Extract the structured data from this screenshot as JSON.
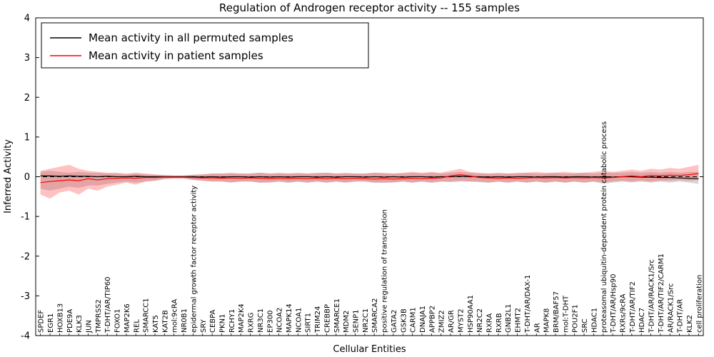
{
  "chart_data": {
    "type": "line",
    "title": "Regulation of Androgen receptor activity -- 155 samples",
    "xlabel": "Cellular Entities",
    "ylabel": "Inferred Activity",
    "ylim": [
      -4,
      4
    ],
    "yticks": [
      -4,
      -3,
      -2,
      -1,
      0,
      1,
      2,
      3,
      4
    ],
    "grid": false,
    "legend_position": "upper left",
    "legend": [
      {
        "label": "Mean activity in all permuted samples",
        "color": "#000000"
      },
      {
        "label": "Mean activity in patient samples",
        "color": "#ff0000"
      }
    ],
    "categories": [
      "SPDEF",
      "EGR1",
      "HOXB13",
      "PDE9A",
      "KLK3",
      "JUN",
      "TMPRSS2",
      "T-DHT/AR/TIP60",
      "FOXO1",
      "MAP2K6",
      "REL",
      "SMARCC1",
      "KAT5",
      "KAT2B",
      "mol:9cRA",
      "NR0B1",
      "epidermal growth factor receptor activity",
      "SRY",
      "CEBPA",
      "PKN1",
      "RCHY1",
      "MAP2K4",
      "RXRG",
      "NR3C1",
      "EP300",
      "NCOA2",
      "MAPK14",
      "NCOA1",
      "SIRT1",
      "TRIM24",
      "CREBBP",
      "SMARCE1",
      "MDM2",
      "SENP1",
      "NR2C1",
      "SMARCA2",
      "positive regulation of transcription",
      "GATA2",
      "GSK3B",
      "CARM1",
      "DNAJA1",
      "APPBP2",
      "ZMIZ2",
      "AR/GR",
      "MYST2",
      "HSP90AA1",
      "NR2C2",
      "RXRA",
      "RXRB",
      "GNB2L1",
      "EHMT2",
      "T-DHT/AR/DAX-1",
      "AR",
      "MAPK8",
      "BRM/BAF57",
      "mol:T-DHT",
      "POU2F1",
      "SRC",
      "HDAC1",
      "proteasomal ubiquitin-dependent protein catabolic process",
      "T-DHT/AR/Hsp90",
      "RXRs/9cRA",
      "T-DHT/AR/TIF2",
      "HDAC7",
      "T-DHT/AR/RACK1/Src",
      "T-DHT/AR/TIF2/CARM1",
      "AR/RACK1/Src",
      "T-DHT/AR",
      "KLK2",
      "cell proliferation"
    ],
    "series": [
      {
        "name": "Mean activity in all permuted samples",
        "color": "#000000",
        "values": [
          0.02,
          0.02,
          0.01,
          0.02,
          0.01,
          0.01,
          0.0,
          0.01,
          0.0,
          0.0,
          0.01,
          0.0,
          0.0,
          0.0,
          0.0,
          0.0,
          0.0,
          -0.01,
          0.0,
          -0.01,
          0.0,
          0.0,
          -0.01,
          0.0,
          -0.01,
          0.0,
          -0.01,
          0.0,
          0.0,
          -0.01,
          0.0,
          -0.01,
          0.0,
          0.0,
          -0.01,
          0.0,
          -0.01,
          0.0,
          -0.01,
          0.0,
          0.0,
          -0.01,
          0.0,
          0.0,
          0.01,
          0.0,
          0.0,
          -0.01,
          0.0,
          -0.01,
          0.0,
          0.0,
          -0.01,
          0.0,
          0.0,
          -0.01,
          0.0,
          0.0,
          -0.01,
          0.0,
          -0.01,
          0.0,
          0.0,
          -0.01,
          -0.01,
          -0.02,
          -0.02,
          -0.03,
          -0.04,
          -0.05
        ]
      },
      {
        "name": "Mean activity in patient samples",
        "color": "#ff0000",
        "values": [
          -0.15,
          -0.12,
          -0.1,
          -0.08,
          -0.1,
          -0.05,
          -0.08,
          -0.05,
          -0.04,
          -0.03,
          -0.04,
          -0.02,
          -0.02,
          -0.01,
          -0.01,
          -0.01,
          -0.02,
          -0.03,
          -0.03,
          -0.04,
          -0.03,
          -0.04,
          -0.03,
          -0.04,
          -0.05,
          -0.04,
          -0.05,
          -0.04,
          -0.05,
          -0.04,
          -0.05,
          -0.04,
          -0.05,
          -0.04,
          -0.05,
          -0.06,
          -0.05,
          -0.06,
          -0.05,
          -0.04,
          -0.05,
          -0.04,
          -0.03,
          0.02,
          0.05,
          0.02,
          -0.02,
          -0.03,
          -0.04,
          -0.03,
          -0.04,
          -0.03,
          -0.02,
          -0.03,
          -0.02,
          -0.03,
          -0.02,
          -0.03,
          -0.02,
          -0.03,
          -0.02,
          0.0,
          0.02,
          0.0,
          0.03,
          0.02,
          0.04,
          0.03,
          0.05,
          0.08
        ]
      }
    ],
    "bands": [
      {
        "name": "permuted-samples-range",
        "color": "#777777",
        "opacity": 0.3,
        "upper": [
          0.12,
          0.15,
          0.12,
          0.1,
          0.12,
          0.1,
          0.1,
          0.08,
          0.08,
          0.06,
          0.08,
          0.06,
          0.05,
          0.04,
          0.03,
          0.03,
          0.05,
          0.06,
          0.08,
          0.08,
          0.08,
          0.08,
          0.08,
          0.1,
          0.08,
          0.08,
          0.08,
          0.08,
          0.08,
          0.08,
          0.1,
          0.08,
          0.08,
          0.08,
          0.08,
          0.1,
          0.08,
          0.08,
          0.08,
          0.1,
          0.08,
          0.1,
          0.08,
          0.1,
          0.12,
          0.1,
          0.08,
          0.08,
          0.08,
          0.08,
          0.08,
          0.1,
          0.08,
          0.08,
          0.1,
          0.08,
          0.08,
          0.1,
          0.08,
          0.1,
          0.1,
          0.1,
          0.12,
          0.1,
          0.12,
          0.1,
          0.12,
          0.1,
          0.12,
          0.12
        ],
        "lower": [
          -0.3,
          -0.35,
          -0.3,
          -0.25,
          -0.28,
          -0.22,
          -0.22,
          -0.18,
          -0.15,
          -0.12,
          -0.15,
          -0.12,
          -0.1,
          -0.06,
          -0.04,
          -0.04,
          -0.08,
          -0.1,
          -0.12,
          -0.12,
          -0.14,
          -0.12,
          -0.12,
          -0.15,
          -0.14,
          -0.12,
          -0.15,
          -0.12,
          -0.15,
          -0.12,
          -0.15,
          -0.12,
          -0.15,
          -0.12,
          -0.12,
          -0.15,
          -0.15,
          -0.14,
          -0.12,
          -0.15,
          -0.12,
          -0.15,
          -0.12,
          -0.14,
          -0.12,
          -0.12,
          -0.14,
          -0.15,
          -0.12,
          -0.15,
          -0.12,
          -0.15,
          -0.12,
          -0.15,
          -0.12,
          -0.15,
          -0.12,
          -0.15,
          -0.12,
          -0.18,
          -0.15,
          -0.12,
          -0.15,
          -0.12,
          -0.15,
          -0.12,
          -0.15,
          -0.12,
          -0.15,
          -0.18
        ]
      },
      {
        "name": "patient-samples-range",
        "color": "#ff3333",
        "opacity": 0.3,
        "upper": [
          0.15,
          0.2,
          0.25,
          0.3,
          0.2,
          0.15,
          0.12,
          0.1,
          0.1,
          0.08,
          0.1,
          0.08,
          0.06,
          0.04,
          0.03,
          0.03,
          0.05,
          0.06,
          0.08,
          0.08,
          0.1,
          0.08,
          0.08,
          0.1,
          0.08,
          0.1,
          0.08,
          0.1,
          0.08,
          0.1,
          0.1,
          0.08,
          0.1,
          0.08,
          0.08,
          0.1,
          0.1,
          0.08,
          0.1,
          0.12,
          0.1,
          0.12,
          0.1,
          0.15,
          0.2,
          0.12,
          0.1,
          0.08,
          0.1,
          0.08,
          0.1,
          0.1,
          0.12,
          0.1,
          0.1,
          0.12,
          0.1,
          0.1,
          0.12,
          0.15,
          0.12,
          0.15,
          0.18,
          0.15,
          0.2,
          0.18,
          0.22,
          0.2,
          0.25,
          0.3
        ],
        "lower": [
          -0.45,
          -0.55,
          -0.4,
          -0.35,
          -0.45,
          -0.3,
          -0.35,
          -0.25,
          -0.2,
          -0.15,
          -0.2,
          -0.12,
          -0.1,
          -0.06,
          -0.05,
          -0.05,
          -0.08,
          -0.1,
          -0.12,
          -0.12,
          -0.15,
          -0.12,
          -0.12,
          -0.15,
          -0.15,
          -0.12,
          -0.15,
          -0.12,
          -0.15,
          -0.12,
          -0.15,
          -0.12,
          -0.15,
          -0.12,
          -0.12,
          -0.15,
          -0.15,
          -0.15,
          -0.12,
          -0.15,
          -0.12,
          -0.15,
          -0.12,
          -0.12,
          -0.1,
          -0.12,
          -0.12,
          -0.15,
          -0.12,
          -0.15,
          -0.12,
          -0.15,
          -0.12,
          -0.15,
          -0.12,
          -0.15,
          -0.12,
          -0.15,
          -0.12,
          -0.15,
          -0.12,
          -0.1,
          -0.12,
          -0.1,
          -0.12,
          -0.1,
          -0.1,
          -0.08,
          -0.1,
          -0.08
        ]
      }
    ]
  }
}
